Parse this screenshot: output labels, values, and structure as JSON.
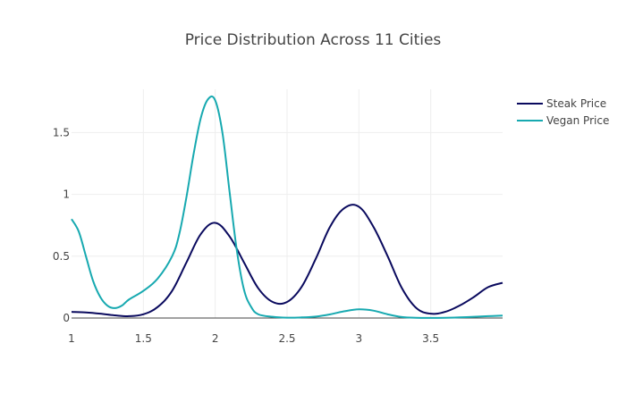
{
  "chart_data": {
    "type": "line",
    "title": "Price Distribution Across 11 Cities",
    "xlabel": "",
    "ylabel": "",
    "xlim": [
      1,
      4
    ],
    "ylim": [
      0,
      1.85
    ],
    "x_ticks": [
      1,
      1.5,
      2,
      2.5,
      3,
      3.5
    ],
    "x_tick_labels": [
      "1",
      "1.5",
      "2",
      "2.5",
      "3",
      "3.5"
    ],
    "y_ticks": [
      0,
      0.5,
      1,
      1.5
    ],
    "y_tick_labels": [
      "0",
      "0.5",
      "1",
      "1.5"
    ],
    "grid": true,
    "legend_position": "top-right",
    "series": [
      {
        "name": "Steak Price",
        "color": "#0a0a5e",
        "x": [
          1,
          1.1,
          1.2,
          1.3,
          1.4,
          1.5,
          1.6,
          1.7,
          1.8,
          1.9,
          2,
          2.1,
          2.2,
          2.3,
          2.4,
          2.5,
          2.6,
          2.7,
          2.8,
          2.9,
          3,
          3.1,
          3.2,
          3.3,
          3.4,
          3.5,
          3.6,
          3.7,
          3.8,
          3.9,
          4
        ],
        "y": [
          0.05,
          0.045,
          0.035,
          0.022,
          0.015,
          0.03,
          0.09,
          0.22,
          0.45,
          0.68,
          0.77,
          0.66,
          0.45,
          0.24,
          0.13,
          0.13,
          0.25,
          0.48,
          0.74,
          0.89,
          0.9,
          0.74,
          0.5,
          0.24,
          0.08,
          0.035,
          0.05,
          0.1,
          0.17,
          0.25,
          0.285
        ]
      },
      {
        "name": "Vegan Price",
        "color": "#17a9b0",
        "x": [
          1,
          1.05,
          1.1,
          1.15,
          1.2,
          1.25,
          1.3,
          1.35,
          1.4,
          1.5,
          1.6,
          1.7,
          1.75,
          1.8,
          1.85,
          1.9,
          1.95,
          2,
          2.05,
          2.1,
          2.15,
          2.2,
          2.25,
          2.3,
          2.4,
          2.5,
          2.6,
          2.7,
          2.8,
          2.9,
          3,
          3.1,
          3.2,
          3.3,
          3.4,
          3.5,
          3.6,
          3.7,
          3.8,
          3.9,
          4
        ],
        "y": [
          0.8,
          0.7,
          0.5,
          0.3,
          0.17,
          0.1,
          0.08,
          0.1,
          0.15,
          0.22,
          0.32,
          0.5,
          0.68,
          0.98,
          1.33,
          1.62,
          1.77,
          1.76,
          1.5,
          1.02,
          0.55,
          0.23,
          0.09,
          0.03,
          0.01,
          0.003,
          0.005,
          0.012,
          0.03,
          0.055,
          0.07,
          0.06,
          0.03,
          0.008,
          0.002,
          0.001,
          0.002,
          0.005,
          0.01,
          0.015,
          0.02
        ]
      }
    ]
  }
}
